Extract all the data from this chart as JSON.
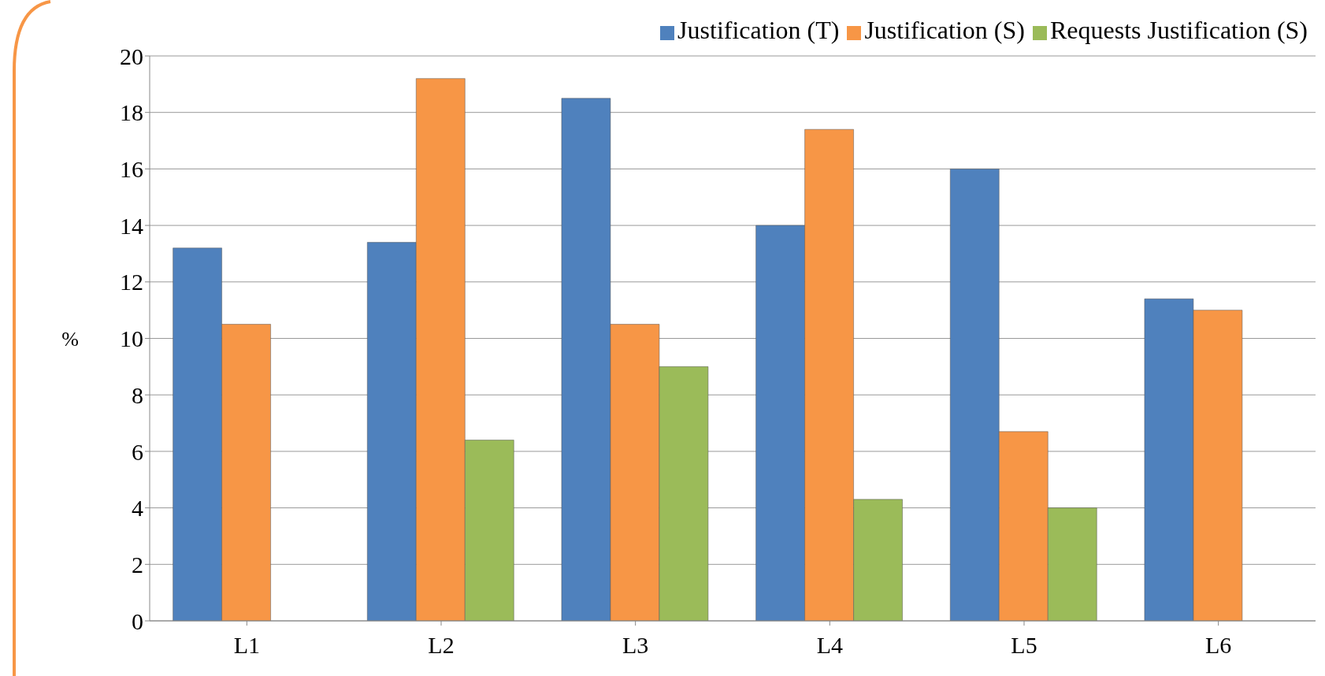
{
  "chart_data": {
    "type": "bar",
    "ylabel": "%",
    "categories": [
      "L1",
      "L2",
      "L3",
      "L4",
      "L5",
      "L6"
    ],
    "series": [
      {
        "name": "Justification (T)",
        "color": "#4f81bd",
        "values": [
          13.2,
          13.4,
          18.5,
          14.0,
          16.0,
          11.4
        ]
      },
      {
        "name": "Justification (S)",
        "color": "#f79646",
        "values": [
          10.5,
          19.2,
          10.5,
          17.4,
          6.7,
          11.0
        ]
      },
      {
        "name": "Requests Justification (S)",
        "color": "#9bbb59",
        "values": [
          0,
          6.4,
          9.0,
          4.3,
          4.0,
          0
        ]
      }
    ],
    "ylim": [
      0,
      20
    ],
    "yticks": [
      0,
      2,
      4,
      6,
      8,
      10,
      12,
      14,
      16,
      18,
      20
    ],
    "grid": "y",
    "legend": "top right"
  }
}
